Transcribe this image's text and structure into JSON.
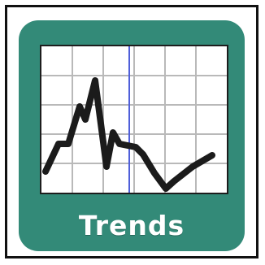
{
  "tile": {
    "label": "Trends",
    "background_color": "#338a78",
    "label_color": "#ffffff",
    "border_color": "#111111"
  },
  "icon": {
    "name": "trend-chart-icon",
    "panel_color": "#ffffff",
    "grid_color": "#b9b9b9",
    "cursor_line_color": "#4f5fd9",
    "trend_line_color": "#1b1b1b"
  }
}
